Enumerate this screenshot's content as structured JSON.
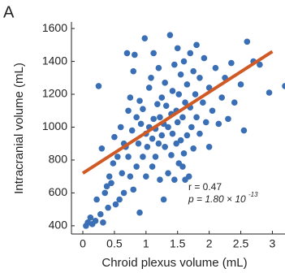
{
  "chart_data": {
    "type": "scatter",
    "panel_label": "A",
    "xlabel": "Chroid plexus volume (mL)",
    "ylabel": "Intracranial volume (mL)",
    "xlim": [
      -0.18,
      3.2
    ],
    "ylim": [
      350,
      1640
    ],
    "xticks": [
      0,
      0.5,
      1,
      1.5,
      2,
      2.5,
      3
    ],
    "yticks": [
      400,
      600,
      800,
      1000,
      1200,
      1400,
      1600
    ],
    "color": "#3a6fb5",
    "x": [
      0.05,
      0.08,
      0.12,
      0.15,
      0.2,
      0.22,
      0.25,
      0.28,
      0.3,
      0.32,
      0.35,
      0.38,
      0.4,
      0.42,
      0.45,
      0.48,
      0.5,
      0.52,
      0.55,
      0.58,
      0.6,
      0.62,
      0.65,
      0.68,
      0.7,
      0.72,
      0.75,
      0.75,
      0.78,
      0.8,
      0.8,
      0.82,
      0.85,
      0.85,
      0.88,
      0.9,
      0.9,
      0.92,
      0.95,
      0.95,
      0.98,
      1.0,
      1.0,
      1.02,
      1.05,
      1.05,
      1.08,
      1.1,
      1.1,
      1.12,
      1.12,
      1.15,
      1.15,
      1.18,
      1.2,
      1.2,
      1.22,
      1.22,
      1.25,
      1.25,
      1.28,
      1.28,
      1.3,
      1.3,
      1.32,
      1.35,
      1.35,
      1.38,
      1.4,
      1.4,
      1.42,
      1.42,
      1.45,
      1.45,
      1.48,
      1.48,
      1.5,
      1.5,
      1.52,
      1.52,
      1.55,
      1.55,
      1.58,
      1.6,
      1.6,
      1.62,
      1.65,
      1.65,
      1.68,
      1.7,
      1.7,
      1.72,
      1.75,
      1.75,
      1.78,
      1.8,
      1.8,
      1.85,
      1.85,
      1.9,
      1.92,
      1.95,
      2.0,
      2.0,
      2.05,
      2.1,
      2.15,
      2.2,
      2.25,
      2.3,
      2.35,
      2.4,
      2.5,
      2.55,
      2.6,
      2.7,
      2.8,
      2.95,
      3.2,
      0.65,
      0.72,
      1.58,
      1.62
    ],
    "values": [
      400,
      420,
      450,
      410,
      430,
      560,
      1250,
      470,
      870,
      420,
      600,
      640,
      510,
      700,
      660,
      780,
      940,
      530,
      820,
      560,
      1000,
      720,
      900,
      880,
      1450,
      1100,
      700,
      1180,
      980,
      620,
      1340,
      1440,
      760,
      1060,
      900,
      1160,
      480,
      1020,
      1110,
      820,
      1540,
      700,
      960,
      880,
      1000,
      1240,
      1300,
      930,
      760,
      1050,
      1450,
      820,
      990,
      1140,
      900,
      1360,
      1060,
      680,
      950,
      1180,
      1020,
      560,
      880,
      1270,
      1130,
      720,
      1000,
      1560,
      1080,
      830,
      1220,
      960,
      1380,
      680,
      1100,
      900,
      1030,
      1480,
      780,
      1200,
      920,
      1320,
      1060,
      1400,
      840,
      1150,
      950,
      1260,
      700,
      1120,
      1450,
      1000,
      1340,
      870,
      1200,
      1060,
      1500,
      960,
      1300,
      1150,
      1420,
      1030,
      1240,
      880,
      1100,
      1360,
      1020,
      1180,
      1300,
      1050,
      1390,
      1150,
      1260,
      980,
      1520,
      1400,
      1380,
      1210,
      1250,
      600,
      820,
      760,
      680
    ],
    "trend_line": {
      "x": [
        0,
        3
      ],
      "y": [
        720,
        1460
      ],
      "color": "#d05a25"
    },
    "annotations": [
      "r = 0.47",
      "p = 1.80 × 10",
      "-13"
    ]
  }
}
